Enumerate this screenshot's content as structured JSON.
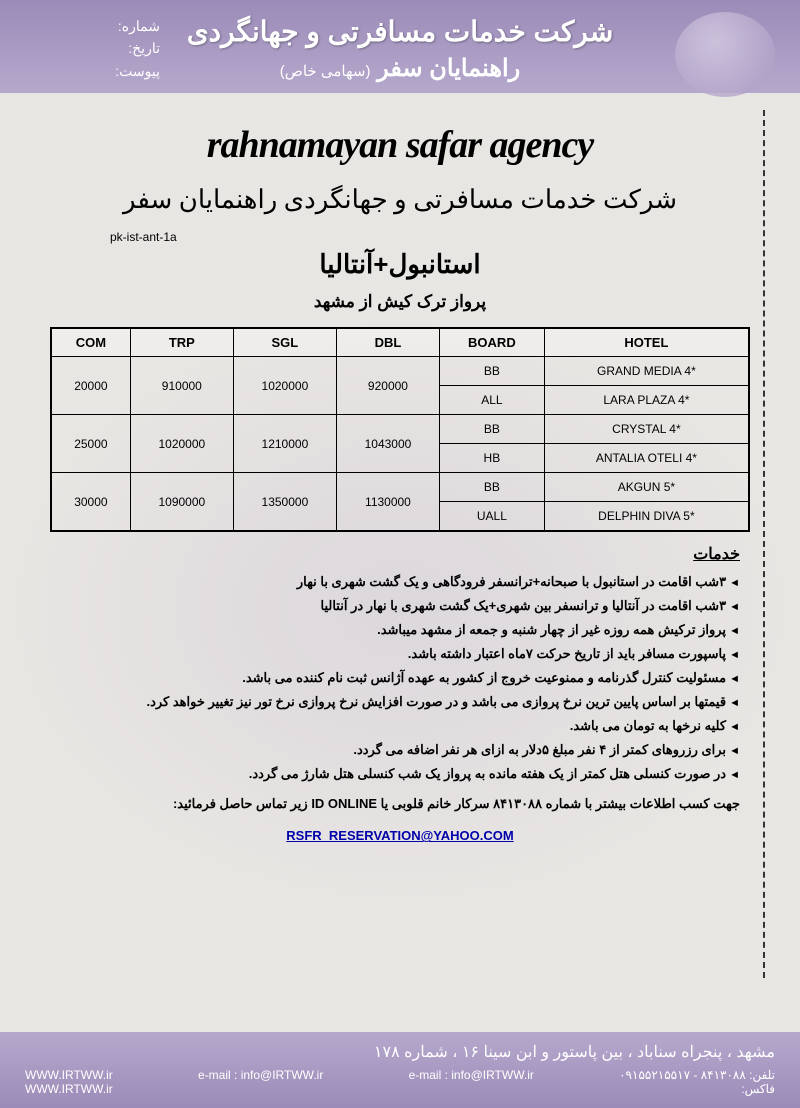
{
  "header": {
    "labels": {
      "number": "شماره:",
      "date": "تاریخ:",
      "attachment": "پیوست:"
    },
    "title_main": "شرکت خدمات مسافرتی و جهانگردی",
    "title_sub": "راهنمایان سفر",
    "title_sub_paren": "(سهامی خاص)"
  },
  "agency": {
    "name_en": "rahnamayan safar agency",
    "name_fa": "شرکت خدمات مسافرتی و جهانگردی راهنمایان سفر"
  },
  "pk_code": "pk-ist-ant-1a",
  "dest_title": "استانبول+آنتالیا",
  "flight_info": "پرواز ترک کیش از مشهد",
  "table": {
    "headers": [
      "COM",
      "TRP",
      "SGL",
      "DBL",
      "BOARD",
      "HOTEL"
    ],
    "rows": [
      {
        "com": "20000",
        "trp": "910000",
        "sgl": "1020000",
        "dbl": "920000",
        "board": [
          "BB",
          "ALL"
        ],
        "hotel": [
          "GRAND MEDIA 4*",
          "LARA PLAZA 4*"
        ]
      },
      {
        "com": "25000",
        "trp": "1020000",
        "sgl": "1210000",
        "dbl": "1043000",
        "board": [
          "BB",
          "HB"
        ],
        "hotel": [
          "CRYSTAL 4*",
          "ANTALIA OTELI 4*"
        ]
      },
      {
        "com": "30000",
        "trp": "1090000",
        "sgl": "1350000",
        "dbl": "1130000",
        "board": [
          "BB",
          "UALL"
        ],
        "hotel": [
          "AKGUN 5*",
          "DELPHIN DIVA 5*"
        ]
      }
    ]
  },
  "services": {
    "header": "خدمات",
    "items": [
      "۳شب اقامت در استانبول با صبحانه+ترانسفر فرودگاهی و یک گشت شهری با نهار",
      "۳شب اقامت در آنتالیا و ترانسفر بین شهری+یک گشت شهری با نهار در آنتالیا",
      "پرواز ترکیش همه روزه غیر از چهار شنبه و جمعه از مشهد میباشد.",
      "پاسپورت مسافر باید از تاریخ حرکت ۷ماه اعتبار داشته باشد.",
      "مسئولیت کنترل گذرنامه و ممنوعیت خروج از کشور به عهده آژانس ثبت نام کننده می باشد.",
      "قیمتها بر اساس پایین ترین نرخ پروازی می باشد و در صورت افزایش نرخ پروازی نرخ تور نیز تغییر خواهد کرد.",
      "کلیه نرخها به تومان می باشد.",
      "برای رزروهای کمتر از ۴ نفر مبلغ ۵دلار به ازای هر نفر اضافه می گردد.",
      "در صورت کنسلی هتل کمتر از یک هفته مانده به پرواز یک شب کنسلی هتل شارژ می گردد."
    ]
  },
  "contact_line": "جهت کسب اطلاعات بیشتر با شماره ۸۴۱۳۰۸۸ سرکار خانم قلوبی یا ID ONLINE زیر تماس حاصل فرمائید:",
  "email": "RSFR_RESERVATION@YAHOO.COM",
  "footer": {
    "address": "مشهد ، پنجراه سناباد ، بین پاستور و ابن سینا ۱۶ ، شماره ۱۷۸",
    "phone": "تلفن: ۸۴۱۳۰۸۸ - ۰۹۱۵۵۲۱۵۵۱۷",
    "fax": "فاکس: ",
    "email": "e-mail : info@IRTWW.ir",
    "email2": "e-mail : info@IRTWW.ir",
    "web": "WWW.IRTWW.ir",
    "web2": "WWW.IRTWW.ir"
  },
  "colors": {
    "header_bg": "#9b8bb8",
    "page_bg": "#e8e6e3",
    "text": "#000000",
    "footer_bg": "#9b8bb8"
  }
}
